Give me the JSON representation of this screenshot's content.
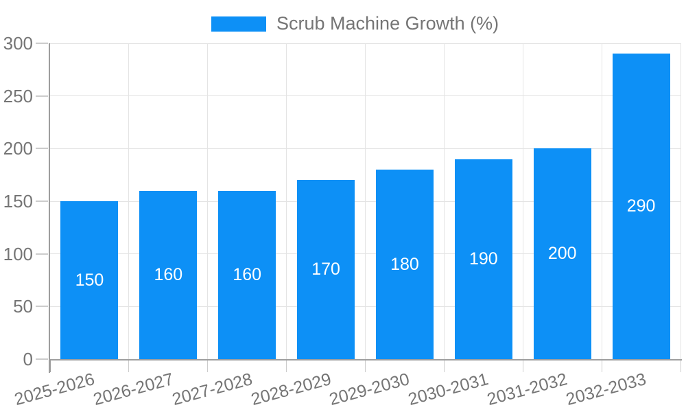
{
  "legend": {
    "label": "Scrub Machine Growth (%)"
  },
  "colors": {
    "bar": "#0d90f6",
    "axis_text": "#757575",
    "grid": "#e4e4e4",
    "tick": "#cccccc",
    "axis_line": "#9e9e9e",
    "bar_label": "#ffffff"
  },
  "chart_data": {
    "type": "bar",
    "title": "Scrub Machine Growth (%)",
    "series_name": "Scrub Machine Growth (%)",
    "categories": [
      "2025-2026",
      "2026-2027",
      "2027-2028",
      "2028-2029",
      "2029-2030",
      "2030-2031",
      "2031-2032",
      "2032-2033"
    ],
    "values": [
      150,
      160,
      160,
      170,
      180,
      190,
      200,
      290
    ],
    "xlabel": "",
    "ylabel": "",
    "ylim": [
      0,
      300
    ],
    "yticks": [
      0,
      50,
      100,
      150,
      200,
      250,
      300
    ],
    "grid": true,
    "legend_position": "top",
    "bar_labels_visible": true,
    "x_label_rotation_deg": -15
  }
}
